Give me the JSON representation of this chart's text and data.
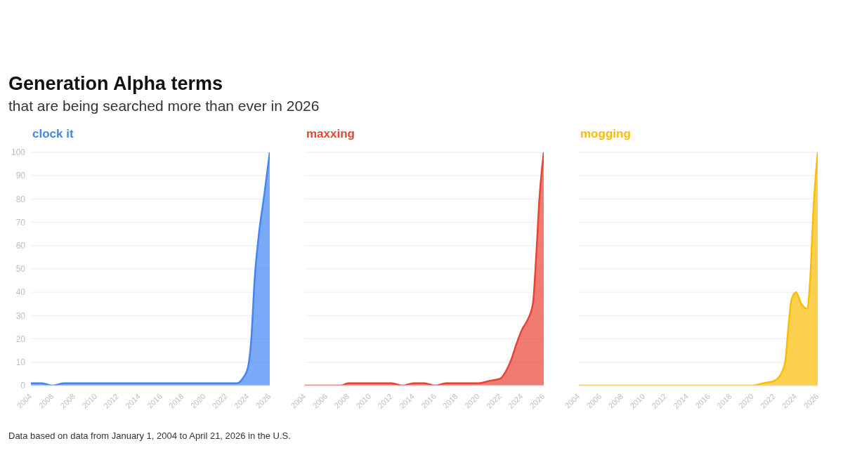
{
  "chart_data": [
    {
      "type": "area",
      "title": "Generation Alpha terms",
      "subtitle": "that are being searched more than ever in 2026",
      "annotations": [
        "Data based on data from January 1, 2004 to April 21, 2026 in the U.S."
      ],
      "series": [
        {
          "name": "clock it",
          "color": "#4285f4",
          "x": [
            2004,
            2005,
            2006,
            2007,
            2010,
            2015,
            2020,
            2023,
            2023.5,
            2024,
            2024.3,
            2024.6,
            2025,
            2025.5,
            2026
          ],
          "values": [
            1,
            1,
            0,
            1,
            1,
            1,
            1,
            1,
            3,
            8,
            20,
            45,
            65,
            82,
            100
          ]
        }
      ],
      "xlim": [
        2004,
        2026
      ],
      "xticks": [
        2004,
        2006,
        2008,
        2010,
        2012,
        2014,
        2016,
        2018,
        2020,
        2022,
        2024,
        2026
      ],
      "ylim": [
        0,
        100
      ],
      "yticks": [
        0,
        10,
        20,
        30,
        40,
        50,
        60,
        70,
        80,
        90,
        100
      ],
      "grid": "y"
    },
    {
      "type": "area",
      "series": [
        {
          "name": "maxxing",
          "color": "#ea4335",
          "x": [
            2004,
            2007.3,
            2008,
            2012,
            2013,
            2014,
            2015,
            2016,
            2017,
            2020,
            2021,
            2022,
            2022.5,
            2023,
            2023.5,
            2024,
            2024.5,
            2025,
            2025.3,
            2025.6,
            2026
          ],
          "values": [
            0,
            0,
            1,
            1,
            0,
            1,
            1,
            0,
            1,
            1,
            2,
            3,
            6,
            11,
            18,
            24,
            28,
            35,
            55,
            80,
            100
          ]
        }
      ],
      "xlim": [
        2004,
        2026
      ],
      "xticks": [
        2004,
        2006,
        2008,
        2010,
        2012,
        2014,
        2016,
        2018,
        2020,
        2022,
        2024,
        2026
      ],
      "ylim": [
        0,
        100
      ],
      "yticks": [
        0,
        10,
        20,
        30,
        40,
        50,
        60,
        70,
        80,
        90,
        100
      ],
      "grid": "y",
      "tick_labels": "x"
    },
    {
      "type": "area",
      "series": [
        {
          "name": "mogging",
          "color": "#fbbc04",
          "x": [
            2004,
            2020,
            2021,
            2022,
            2022.5,
            2023,
            2023.3,
            2023.6,
            2024,
            2024.5,
            2025,
            2025.3,
            2025.6,
            2026
          ],
          "values": [
            0,
            0,
            1,
            2,
            4,
            10,
            25,
            37,
            40,
            35,
            33,
            45,
            75,
            100
          ]
        }
      ],
      "xlim": [
        2004,
        2026
      ],
      "xticks": [
        2004,
        2006,
        2008,
        2010,
        2012,
        2014,
        2016,
        2018,
        2020,
        2022,
        2024,
        2026
      ],
      "ylim": [
        0,
        100
      ],
      "yticks": [
        0,
        10,
        20,
        30,
        40,
        50,
        60,
        70,
        80,
        90,
        100
      ],
      "grid": "y",
      "tick_labels": "x"
    }
  ]
}
